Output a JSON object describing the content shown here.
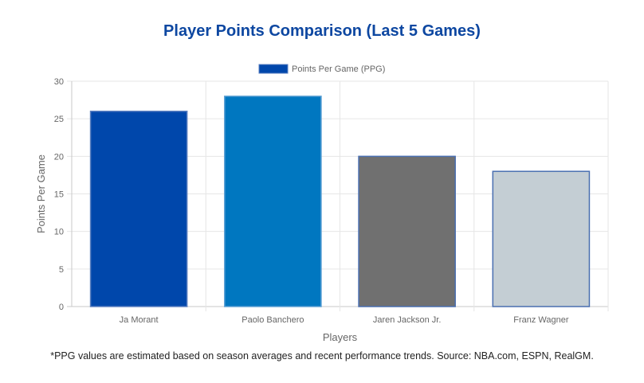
{
  "chart_data": {
    "type": "bar",
    "title": "Player Points Comparison (Last 5 Games)",
    "categories": [
      "Ja Morant",
      "Paolo Banchero",
      "Jaren Jackson Jr.",
      "Franz Wagner"
    ],
    "series": [
      {
        "name": "Points Per Game (PPG)",
        "values": [
          26,
          28,
          20,
          18
        ],
        "colors": [
          "#0047ab",
          "#0077c0",
          "#707070",
          "#c4ced4"
        ],
        "border_colors": [
          "#5a7fc0",
          "#5a9fd4",
          "#4a6fb0",
          "#4a6fb0"
        ]
      }
    ],
    "legend_color": "#0047ab",
    "xlabel": "Players",
    "ylabel": "Points Per Game",
    "ylim": [
      0,
      30
    ],
    "yticks": [
      0,
      5,
      10,
      15,
      20,
      25,
      30
    ],
    "grid": true,
    "legend_position": "top-center"
  },
  "footnote": "*PPG values are estimated based on season averages and recent performance trends. Source: NBA.com, ESPN, RealGM."
}
